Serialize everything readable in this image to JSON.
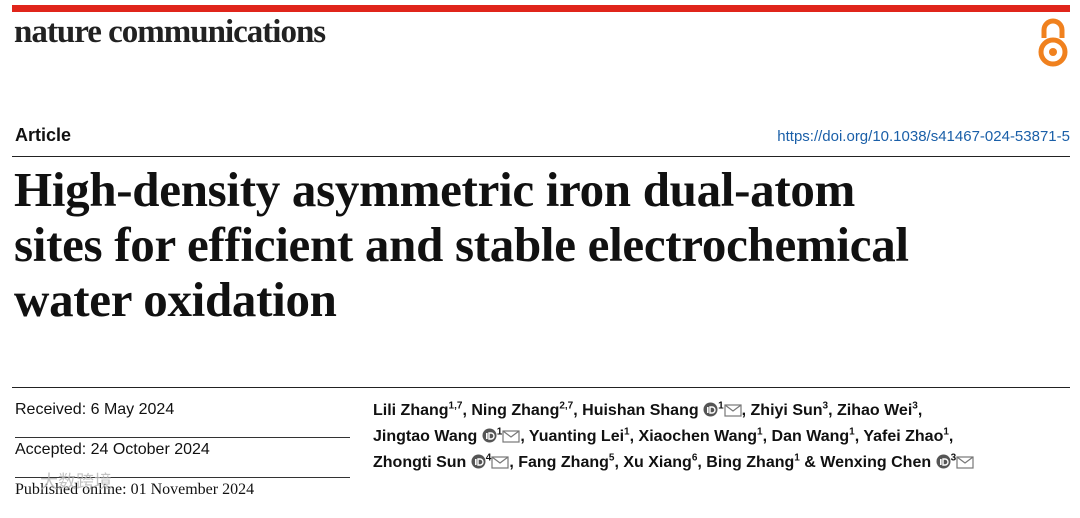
{
  "header": {
    "journal": "nature communications"
  },
  "article": {
    "type": "Article",
    "doi": "https://doi.org/10.1038/s41467-024-53871-5",
    "title_lines": [
      "High-density asymmetric iron dual-atom",
      "sites for efficient and stable electrochemical",
      "water oxidation"
    ]
  },
  "dates": [
    {
      "label": "Received:",
      "value": "6 May 2024"
    },
    {
      "label": "Accepted:",
      "value": "24 October 2024"
    },
    {
      "label": "Published online:",
      "value": "01 November 2024"
    }
  ],
  "authors": [
    {
      "name": "Lili Zhang",
      "affiliations": "1,7",
      "trailing": ","
    },
    {
      "name": "Ning Zhang",
      "affiliations": "2,7",
      "trailing": ","
    },
    {
      "name": "Huishan Shang",
      "orcid": true,
      "affiliations": "1",
      "email": true,
      "trailing": ","
    },
    {
      "name": "Zhiyi Sun",
      "affiliations": "3",
      "trailing": ","
    },
    {
      "name": "Zihao Wei",
      "affiliations": "3",
      "trailing": ","
    },
    {
      "name": "Jingtao Wang",
      "orcid": true,
      "affiliations": "1",
      "email": true,
      "trailing": ","
    },
    {
      "name": "Yuanting Lei",
      "affiliations": "1",
      "trailing": ","
    },
    {
      "name": "Xiaochen Wang",
      "affiliations": "1",
      "trailing": ","
    },
    {
      "name": "Dan Wang",
      "affiliations": "1",
      "trailing": ","
    },
    {
      "name": "Yafei Zhao",
      "affiliations": "1",
      "trailing": ","
    },
    {
      "name": "Zhongti Sun",
      "orcid": true,
      "affiliations": "4",
      "email": true,
      "trailing": ","
    },
    {
      "name": "Fang Zhang",
      "affiliations": "5",
      "trailing": ","
    },
    {
      "name": "Xu Xiang",
      "affiliations": "6",
      "trailing": ","
    },
    {
      "name": "Bing Zhang",
      "affiliations": "1",
      "trailing": "&"
    },
    {
      "name": "Wenxing Chen",
      "orcid": true,
      "affiliations": "3",
      "email": true
    }
  ],
  "watermark": "大数跨境"
}
